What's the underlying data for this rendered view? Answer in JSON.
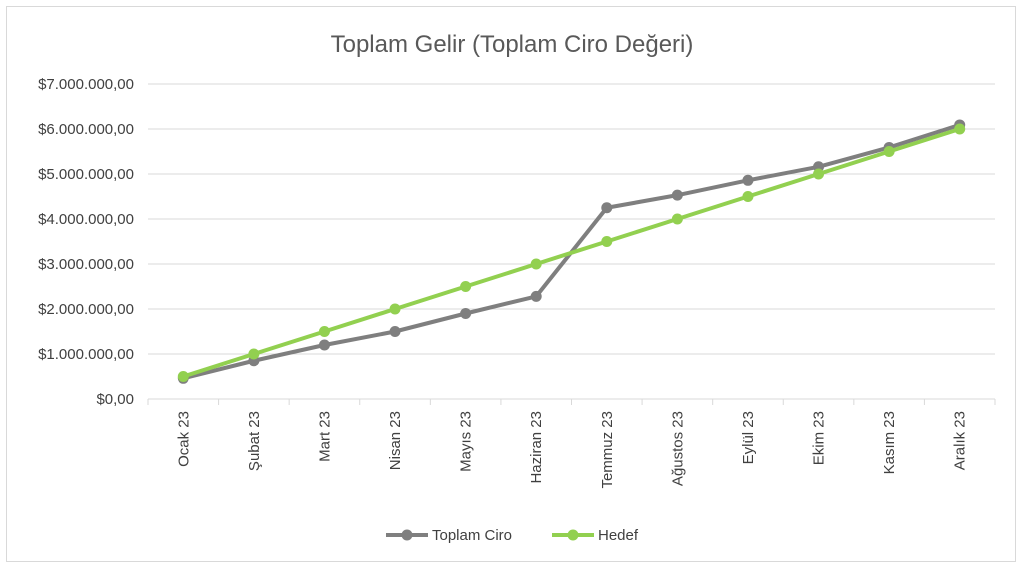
{
  "chart_data": {
    "type": "line",
    "title": "Toplam Gelir (Toplam Ciro Değeri)",
    "xlabel": "",
    "ylabel": "",
    "categories": [
      "Ocak 23",
      "Şubat 23",
      "Mart 23",
      "Nisan 23",
      "Mayıs 23",
      "Haziran 23",
      "Temmuz 23",
      "Ağustos 23",
      "Eylül 23",
      "Ekim 23",
      "Kasım 23",
      "Aralık 23"
    ],
    "ylim": [
      0,
      7000000
    ],
    "yticks": [
      0,
      1000000,
      2000000,
      3000000,
      4000000,
      5000000,
      6000000,
      7000000
    ],
    "ytick_labels": [
      "$0,00",
      "$1.000.000,00",
      "$2.000.000,00",
      "$3.000.000,00",
      "$4.000.000,00",
      "$5.000.000,00",
      "$6.000.000,00",
      "$7.000.000,00"
    ],
    "grid": true,
    "legend_position": "bottom",
    "series": [
      {
        "name": "Toplam Ciro",
        "color": "#7f7f7f",
        "values": [
          460000,
          850000,
          1200000,
          1500000,
          1900000,
          2280000,
          4250000,
          4530000,
          4860000,
          5160000,
          5590000,
          6090000
        ]
      },
      {
        "name": "Hedef",
        "color": "#92d050",
        "values": [
          500000,
          1000000,
          1500000,
          2000000,
          2500000,
          3000000,
          3500000,
          4000000,
          4500000,
          5000000,
          5500000,
          6000000
        ]
      }
    ]
  }
}
